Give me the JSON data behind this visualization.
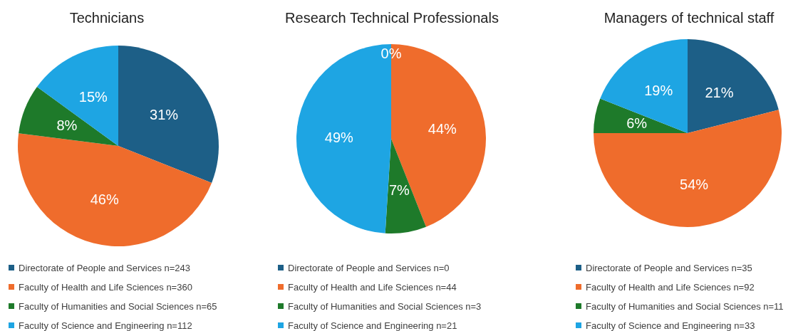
{
  "chart_data": [
    {
      "type": "pie",
      "title": "Technicians",
      "categories": [
        "Directorate of People and Services n=243",
        "Faculty of Health and Life Sciences n=360",
        "Faculty of Humanities and Social Sciences n=65",
        "Faculty of Science and Engineering n=112"
      ],
      "values": [
        31,
        46,
        8,
        15
      ],
      "value_labels": [
        "31%",
        "46%",
        "8%",
        "15%"
      ],
      "colors": [
        "#1d5f87",
        "#ef6c2c",
        "#1e7a2a",
        "#1ea5e3"
      ],
      "legend": "bottom"
    },
    {
      "type": "pie",
      "title": "Research Technical Professionals",
      "categories": [
        "Directorate of People and Services n=0",
        "Faculty of Health and Life Sciences n=44",
        "Faculty of Humanities and Social Sciences n=3",
        "Faculty of Science and Engineering n=21"
      ],
      "values": [
        0,
        44,
        7,
        49
      ],
      "value_labels": [
        "0%",
        "44%",
        "7%",
        "49%"
      ],
      "colors": [
        "#1d5f87",
        "#ef6c2c",
        "#1e7a2a",
        "#1ea5e3"
      ],
      "legend": "bottom"
    },
    {
      "type": "pie",
      "title": "Managers of technical staff",
      "categories": [
        "Directorate of People and Services n=35",
        "Faculty of Health and Life Sciences n=92",
        "Faculty of Humanities and Social Sciences n=11",
        "Faculty of Science and Engineering n=33"
      ],
      "values": [
        21,
        54,
        6,
        19
      ],
      "value_labels": [
        "21%",
        "54%",
        "6%",
        "19%"
      ],
      "colors": [
        "#1d5f87",
        "#ef6c2c",
        "#1e7a2a",
        "#1ea5e3"
      ],
      "legend": "bottom"
    }
  ]
}
